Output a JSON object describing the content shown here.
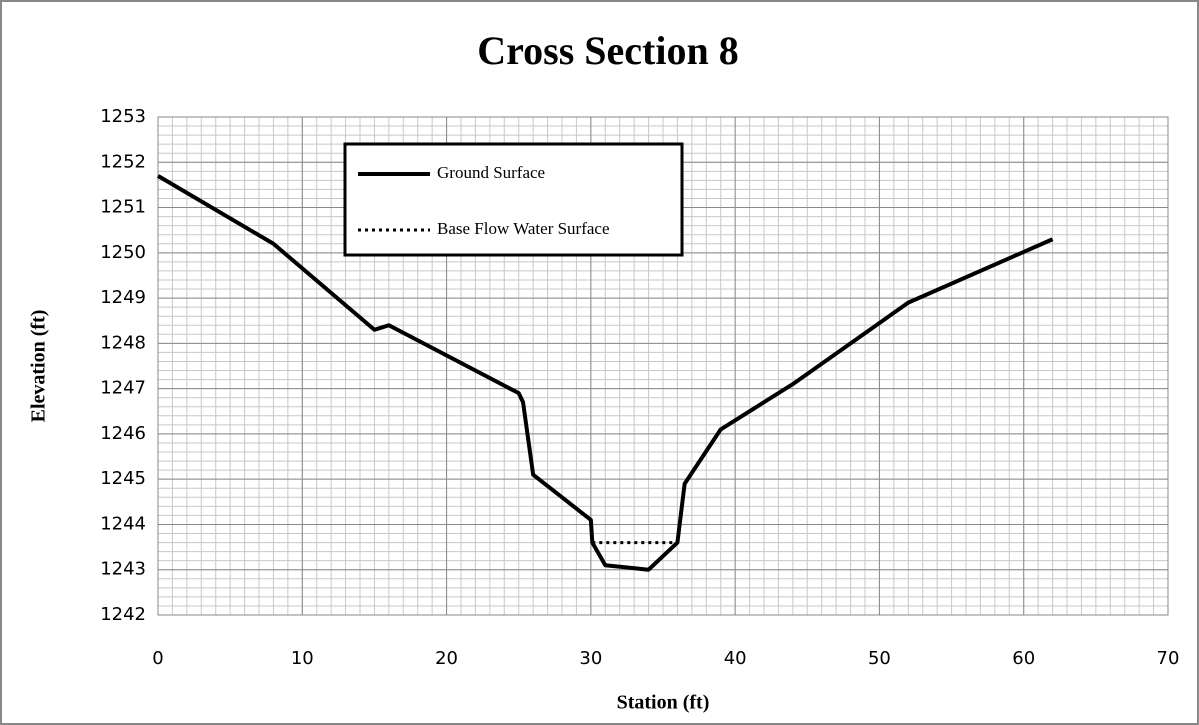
{
  "chart_data": {
    "type": "line",
    "title": "Cross Section 8",
    "xlabel": "Station (ft)",
    "ylabel": "Elevation (ft)",
    "xlim": [
      0,
      70
    ],
    "xticks": [
      0,
      10,
      20,
      30,
      40,
      50,
      60,
      70
    ],
    "ylim": [
      1242,
      1253
    ],
    "yticks": [
      1242,
      1243,
      1244,
      1245,
      1246,
      1247,
      1248,
      1249,
      1250,
      1251,
      1252,
      1253
    ],
    "grid": true,
    "xminor": 1,
    "yminor": 0.2,
    "legend": "upper left",
    "series": [
      {
        "name": "Ground Surface",
        "color": "#000000",
        "style": "solid",
        "x": [
          0,
          8,
          15,
          16,
          25,
          25.3,
          26,
          28,
          30,
          30.1,
          31,
          34,
          36,
          36.5,
          39,
          42,
          44,
          52,
          62
        ],
        "values": [
          1251.7,
          1250.2,
          1248.3,
          1248.4,
          1246.9,
          1246.7,
          1245.1,
          1244.6,
          1244.1,
          1243.6,
          1243.1,
          1243.0,
          1243.6,
          1244.9,
          1246.1,
          1246.7,
          1247.1,
          1248.9,
          1250.3
        ]
      },
      {
        "name": "Base Flow Water Surface",
        "color": "#000000",
        "style": "dotted",
        "x": [
          30.1,
          36
        ],
        "values": [
          1243.6,
          1243.6
        ]
      }
    ]
  }
}
